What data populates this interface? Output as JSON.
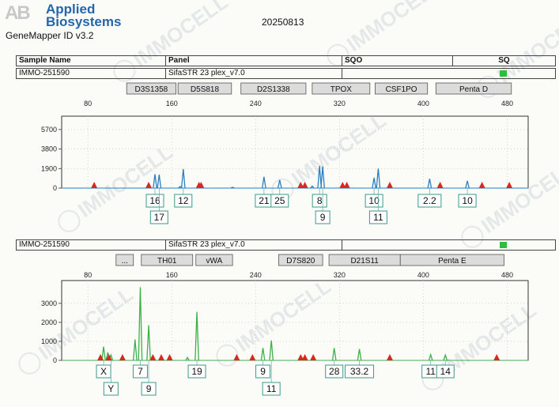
{
  "header": {
    "brand_line1": "Applied",
    "brand_line2": "Biosystems",
    "brand_mark": "AB",
    "software": "GeneMapper ID v3.2",
    "run_date": "20250813"
  },
  "watermark_text": "IMMOCELL",
  "sample_table": {
    "col_sample": "Sample Name",
    "col_panel": "Panel",
    "col_sqo": "SQO",
    "col_sq": "SQ"
  },
  "panels": [
    {
      "sample": "IMMO-251590",
      "panel": "SifaSTR 23 plex_v7.0",
      "qc_color": "#2ebe3a",
      "chart_data": {
        "type": "line",
        "dye": "blue",
        "color": "#2b7fc0",
        "xlabel": "",
        "ylabel": "",
        "xticks": [
          80,
          160,
          240,
          320,
          400,
          480
        ],
        "xlim": [
          55,
          500
        ],
        "yticks": [
          0,
          1900,
          3800,
          5700
        ],
        "yticklabels": [
          "0",
          "1900",
          "3800",
          "5700"
        ],
        "ylim": [
          0,
          7000
        ],
        "grid": true,
        "loci": [
          {
            "name": "D3S1358",
            "start": 117,
            "end": 164
          },
          {
            "name": "D5S818",
            "start": 166,
            "end": 217
          },
          {
            "name": "D2S1338",
            "start": 226,
            "end": 288
          },
          {
            "name": "TPOX",
            "start": 294,
            "end": 349
          },
          {
            "name": "CSF1PO",
            "start": 354,
            "end": 404
          },
          {
            "name": "Penta D",
            "start": 412,
            "end": 484
          }
        ],
        "peaks": [
          {
            "x": 144,
            "y": 1350
          },
          {
            "x": 148,
            "y": 1300
          },
          {
            "x": 168,
            "y": 150
          },
          {
            "x": 171,
            "y": 1850
          },
          {
            "x": 218,
            "y": 80
          },
          {
            "x": 248,
            "y": 1100
          },
          {
            "x": 263,
            "y": 800
          },
          {
            "x": 294,
            "y": 200
          },
          {
            "x": 301,
            "y": 2150
          },
          {
            "x": 304,
            "y": 2100
          },
          {
            "x": 353,
            "y": 1000
          },
          {
            "x": 357,
            "y": 1900
          },
          {
            "x": 406,
            "y": 900
          },
          {
            "x": 442,
            "y": 700
          }
        ],
        "markers": [
          86,
          138,
          186,
          188,
          283,
          287,
          323,
          327,
          368,
          416,
          456,
          482
        ],
        "alleles": [
          {
            "x": 144,
            "row": 1,
            "label": "16"
          },
          {
            "x": 148,
            "row": 2,
            "label": "17"
          },
          {
            "x": 171,
            "row": 1,
            "label": "12"
          },
          {
            "x": 248,
            "row": 1,
            "label": "21"
          },
          {
            "x": 263,
            "row": 1,
            "label": "25"
          },
          {
            "x": 301,
            "row": 1,
            "label": "8"
          },
          {
            "x": 304,
            "row": 2,
            "label": "9"
          },
          {
            "x": 353,
            "row": 1,
            "label": "10"
          },
          {
            "x": 357,
            "row": 2,
            "label": "11"
          },
          {
            "x": 406,
            "row": 1,
            "label": "2.2"
          },
          {
            "x": 442,
            "row": 1,
            "label": "10"
          }
        ]
      }
    },
    {
      "sample": "IMMO-251590",
      "panel": "SifaSTR 23 plex_v7.0",
      "qc_color": "#2ebe3a",
      "chart_data": {
        "type": "line",
        "dye": "green",
        "color": "#3cb04a",
        "xlabel": "",
        "ylabel": "",
        "xticks": [
          80,
          160,
          240,
          320,
          400,
          480
        ],
        "xlim": [
          55,
          500
        ],
        "yticks": [
          0,
          1000,
          2000,
          3000
        ],
        "yticklabels": [
          "0",
          "1000",
          "2000",
          "3000"
        ],
        "ylim": [
          0,
          4200
        ],
        "grid": true,
        "locus_extra": "...",
        "loci": [
          {
            "name": "TH01",
            "start": 131,
            "end": 180
          },
          {
            "name": "vWA",
            "start": 183,
            "end": 218
          },
          {
            "name": "D7S820",
            "start": 262,
            "end": 304
          },
          {
            "name": "D21S11",
            "start": 310,
            "end": 378
          },
          {
            "name": "Penta E",
            "start": 378,
            "end": 477
          }
        ],
        "peaks": [
          {
            "x": 95,
            "y": 720
          },
          {
            "x": 99,
            "y": 420
          },
          {
            "x": 102,
            "y": 280
          },
          {
            "x": 125,
            "y": 1100
          },
          {
            "x": 130,
            "y": 3850
          },
          {
            "x": 138,
            "y": 1850
          },
          {
            "x": 175,
            "y": 150
          },
          {
            "x": 184,
            "y": 2550
          },
          {
            "x": 247,
            "y": 650
          },
          {
            "x": 255,
            "y": 1050
          },
          {
            "x": 315,
            "y": 650
          },
          {
            "x": 339,
            "y": 600
          },
          {
            "x": 407,
            "y": 300
          },
          {
            "x": 421,
            "y": 280
          }
        ],
        "markers": [
          92,
          100,
          113,
          142,
          150,
          158,
          222,
          237,
          283,
          287,
          295,
          368,
          470
        ],
        "alleles": [
          {
            "x": 95,
            "row": 1,
            "label": "X"
          },
          {
            "x": 102,
            "row": 2,
            "label": "Y"
          },
          {
            "x": 130,
            "row": 1,
            "label": "7"
          },
          {
            "x": 138,
            "row": 2,
            "label": "9"
          },
          {
            "x": 184,
            "row": 1,
            "label": "19"
          },
          {
            "x": 247,
            "row": 1,
            "label": "9"
          },
          {
            "x": 255,
            "row": 2,
            "label": "11"
          },
          {
            "x": 315,
            "row": 1,
            "label": "28"
          },
          {
            "x": 339,
            "row": 1,
            "label": "33.2"
          },
          {
            "x": 407,
            "row": 1,
            "label": "11"
          },
          {
            "x": 421,
            "row": 1,
            "label": "14"
          }
        ]
      }
    }
  ]
}
